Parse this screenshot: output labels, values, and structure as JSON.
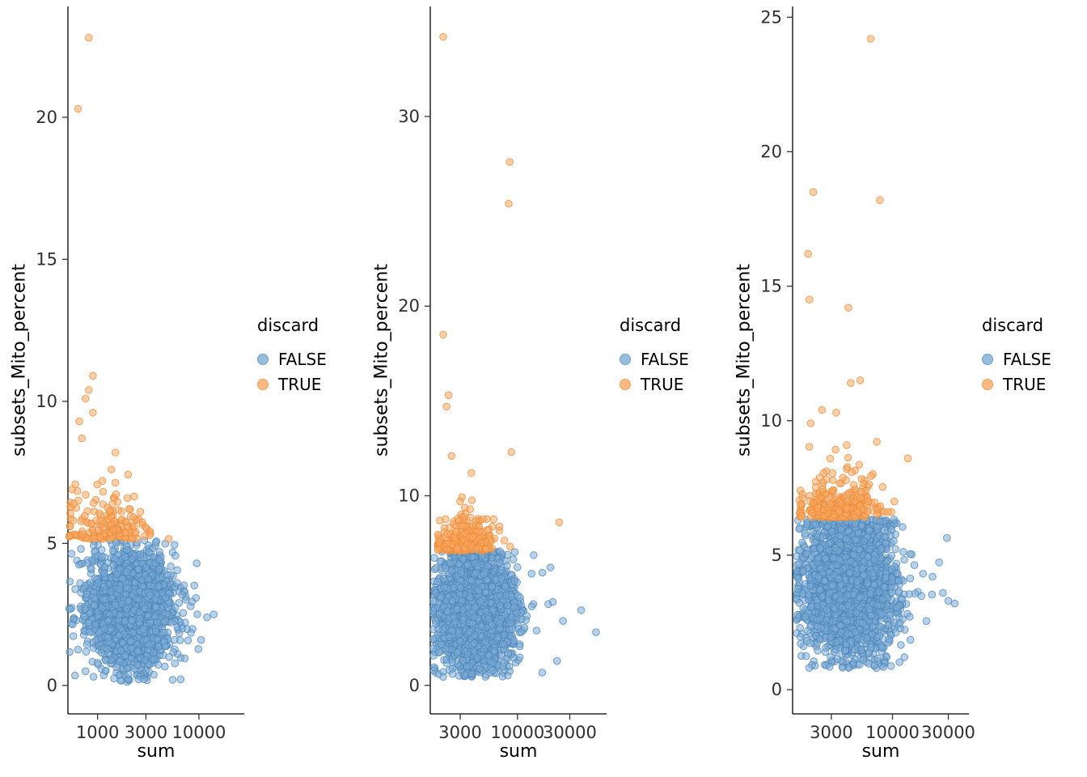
{
  "figure": {
    "background": "#ffffff",
    "colors": {
      "false_fill": "#7CACD6",
      "false_stroke": "#4E86B8",
      "true_fill": "#F9A860",
      "true_stroke": "#E98C3A"
    }
  },
  "chart_data": [
    {
      "type": "scatter",
      "xlabel": "sum",
      "ylabel": "subsets_Mito_percent",
      "x_scale": "log10",
      "grid": false,
      "x_ticks": [
        1000,
        3000,
        10000
      ],
      "x_domain": [
        510,
        28000
      ],
      "y_ticks": [
        0,
        5,
        10,
        15,
        20
      ],
      "y_domain": [
        -1.0,
        23.9
      ],
      "legend": {
        "title": "discard",
        "position": "right",
        "entries": [
          {
            "label": "FALSE",
            "color": "#7CACD6"
          },
          {
            "label": "TRUE",
            "color": "#F9A860"
          }
        ]
      },
      "mito_threshold": 5.15,
      "seed": 101,
      "series": [
        {
          "name": "FALSE",
          "n": 2400,
          "x_log10_mean": 3.33,
          "x_log10_sd": 0.2,
          "x_tail_frac": 0.035,
          "x_tail_mult": 1.9,
          "x_log10_clip": [
            2.72,
            4.25
          ],
          "y_mean": 2.7,
          "y_sd": 0.95,
          "y_clip": [
            0.12,
            5.12
          ]
        },
        {
          "name": "TRUE",
          "n": 170,
          "x_log10_mean": 3.06,
          "x_log10_sd": 0.2,
          "x_tail_frac": 0.05,
          "x_tail_mult": 1.5,
          "x_log10_clip": [
            2.72,
            3.72
          ],
          "y_base": 5.15,
          "y_exp_scale": 0.62,
          "y_max": 8.4
        }
      ],
      "outliers": [
        {
          "discard": "FALSE",
          "points": [
            [
              12000,
              2.4
            ],
            [
              14000,
              2.5
            ],
            [
              10500,
              1.6
            ],
            [
              600,
              0.35
            ],
            [
              760,
              0.5
            ],
            [
              9500,
              4.3
            ]
          ]
        },
        {
          "discard": "TRUE",
          "points": [
            [
              820,
              22.8
            ],
            [
              640,
              20.3
            ],
            [
              900,
              10.9
            ],
            [
              820,
              10.4
            ],
            [
              760,
              10.1
            ],
            [
              900,
              9.6
            ],
            [
              660,
              9.3
            ],
            [
              700,
              8.7
            ],
            [
              1500,
              8.2
            ],
            [
              560,
              6.9
            ],
            [
              580,
              6.4
            ]
          ]
        }
      ]
    },
    {
      "type": "scatter",
      "xlabel": "sum",
      "ylabel": "subsets_Mito_percent",
      "x_scale": "log10",
      "grid": false,
      "x_ticks": [
        3000,
        10000,
        30000
      ],
      "x_domain": [
        1600,
        65000
      ],
      "y_ticks": [
        0,
        10,
        20,
        30
      ],
      "y_domain": [
        -1.5,
        35.8
      ],
      "legend": {
        "title": "discard",
        "position": "right",
        "entries": [
          {
            "label": "FALSE",
            "color": "#7CACD6"
          },
          {
            "label": "TRUE",
            "color": "#F9A860"
          }
        ]
      },
      "mito_threshold": 7.1,
      "seed": 202,
      "series": [
        {
          "name": "FALSE",
          "n": 2600,
          "x_log10_mean": 3.62,
          "x_log10_sd": 0.165,
          "x_tail_frac": 0.04,
          "x_tail_mult": 1.9,
          "x_log10_clip": [
            3.23,
            4.62
          ],
          "y_mean": 3.9,
          "y_sd": 1.45,
          "y_clip": [
            0.45,
            7.08
          ]
        },
        {
          "name": "TRUE",
          "n": 260,
          "x_log10_mean": 3.52,
          "x_log10_sd": 0.14,
          "x_tail_frac": 0.05,
          "x_tail_mult": 1.6,
          "x_log10_clip": [
            3.27,
            4.0
          ],
          "y_base": 7.1,
          "y_exp_scale": 0.6,
          "y_max": 10.4
        }
      ],
      "outliers": [
        {
          "discard": "FALSE",
          "points": [
            [
              52000,
              2.8
            ],
            [
              2100,
              0.45
            ],
            [
              3300,
              0.55
            ],
            [
              21000,
              4.4
            ],
            [
              26000,
              3.4
            ]
          ]
        },
        {
          "discard": "TRUE",
          "points": [
            [
              2100,
              34.2
            ],
            [
              8500,
              27.6
            ],
            [
              8300,
              25.4
            ],
            [
              2100,
              18.5
            ],
            [
              2350,
              15.3
            ],
            [
              2250,
              14.7
            ],
            [
              8800,
              12.3
            ],
            [
              2500,
              12.1
            ],
            [
              3800,
              11.2
            ],
            [
              24000,
              8.6
            ]
          ]
        }
      ]
    },
    {
      "type": "scatter",
      "xlabel": "sum",
      "ylabel": "subsets_Mito_percent",
      "x_scale": "log10",
      "grid": false,
      "x_ticks": [
        3000,
        10000,
        30000
      ],
      "x_domain": [
        1400,
        45000
      ],
      "y_ticks": [
        0,
        5,
        10,
        15,
        20,
        25
      ],
      "y_domain": [
        -0.9,
        25.4
      ],
      "legend": {
        "title": "discard",
        "position": "right",
        "entries": [
          {
            "label": "FALSE",
            "color": "#7CACD6"
          },
          {
            "label": "TRUE",
            "color": "#F9A860"
          }
        ]
      },
      "mito_threshold": 6.4,
      "seed": 303,
      "series": [
        {
          "name": "FALSE",
          "n": 2700,
          "x_log10_mean": 3.63,
          "x_log10_sd": 0.19,
          "x_tail_frac": 0.04,
          "x_tail_mult": 1.8,
          "x_log10_clip": [
            3.18,
            4.55
          ],
          "y_mean": 3.9,
          "y_sd": 1.25,
          "y_clip": [
            0.8,
            6.33
          ]
        },
        {
          "name": "TRUE",
          "n": 300,
          "x_log10_mean": 3.54,
          "x_log10_sd": 0.16,
          "x_tail_frac": 0.05,
          "x_tail_mult": 1.5,
          "x_log10_clip": [
            3.2,
            4.15
          ],
          "y_base": 6.4,
          "y_exp_scale": 0.62,
          "y_max": 9.6
        }
      ],
      "outliers": [
        {
          "discard": "FALSE",
          "points": [
            [
              30000,
              3.3
            ],
            [
              27000,
              3.6
            ],
            [
              22000,
              4.2
            ],
            [
              2900,
              0.85
            ],
            [
              34000,
              3.2
            ]
          ]
        },
        {
          "discard": "TRUE",
          "points": [
            [
              6500,
              24.2
            ],
            [
              2100,
              18.5
            ],
            [
              7800,
              18.2
            ],
            [
              1900,
              16.2
            ],
            [
              1950,
              14.5
            ],
            [
              4200,
              14.2
            ],
            [
              5300,
              11.5
            ],
            [
              4400,
              11.4
            ],
            [
              2500,
              10.4
            ],
            [
              3300,
              10.3
            ],
            [
              2000,
              9.9
            ],
            [
              13500,
              8.6
            ]
          ]
        }
      ]
    }
  ]
}
